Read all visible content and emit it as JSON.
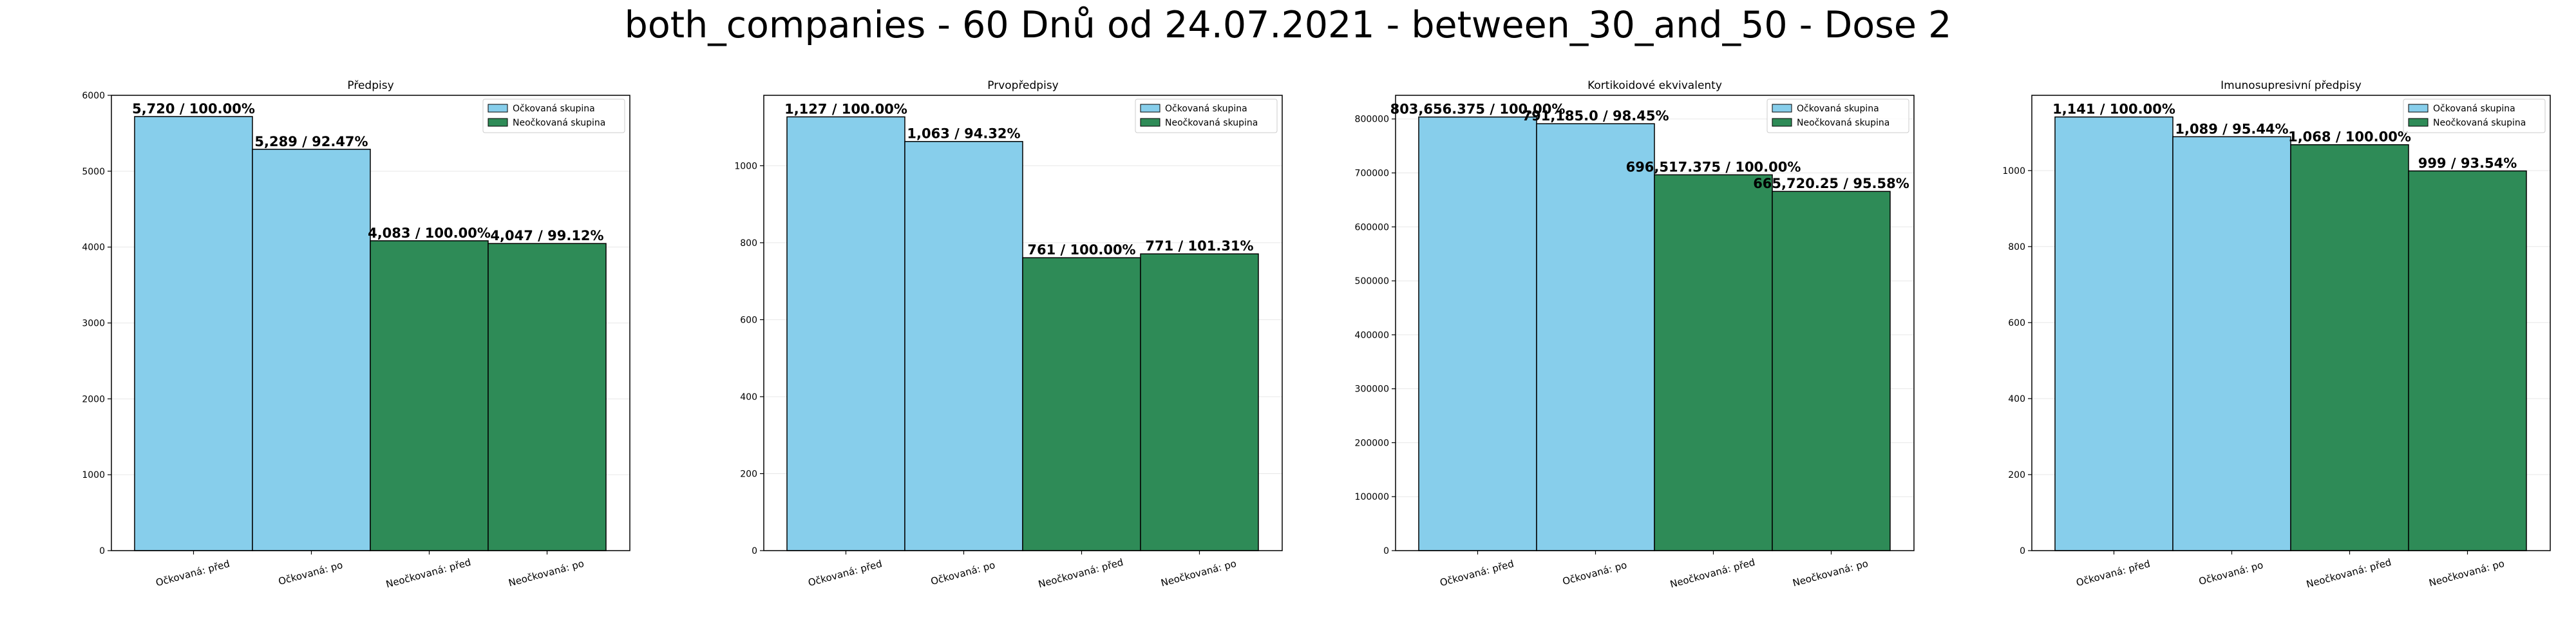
{
  "figure_title": "both_companies - 60 Dnů od 24.07.2021 - between_30_and_50 - Dose 2",
  "colors": {
    "vaccinated": "#87CEEB",
    "unvaccinated": "#2E8B57",
    "edge": "#000000"
  },
  "chart_data": [
    {
      "type": "bar",
      "title": "Předpisy",
      "categories": [
        "Očkovaná: před",
        "Očkovaná: po",
        "Neočkovaná: před",
        "Neočkovaná: po"
      ],
      "values": [
        5720,
        5289,
        4083,
        4047
      ],
      "data_labels": [
        "5,720 / 100.00%",
        "5,289 / 92.47%",
        "4,083 / 100.00%",
        "4,047 / 99.12%"
      ],
      "bar_series": [
        "Očkovaná skupina",
        "Očkovaná skupina",
        "Neočkovaná skupina",
        "Neočkovaná skupina"
      ],
      "ylim": [
        0,
        6000
      ],
      "yticks": [
        0,
        1000,
        2000,
        3000,
        4000,
        5000,
        6000
      ],
      "legend": [
        "Očkovaná skupina",
        "Neočkovaná skupina"
      ],
      "legend_position": "top-right",
      "grid": true
    },
    {
      "type": "bar",
      "title": "Prvopředpisy",
      "categories": [
        "Očkovaná: před",
        "Očkovaná: po",
        "Neočkovaná: před",
        "Neočkovaná: po"
      ],
      "values": [
        1127,
        1063,
        761,
        771
      ],
      "data_labels": [
        "1,127 / 100.00%",
        "1,063 / 94.32%",
        "761 / 100.00%",
        "771 / 101.31%"
      ],
      "bar_series": [
        "Očkovaná skupina",
        "Očkovaná skupina",
        "Neočkovaná skupina",
        "Neočkovaná skupina"
      ],
      "ylim": [
        0,
        1183
      ],
      "yticks": [
        0,
        200,
        400,
        600,
        800,
        1000
      ],
      "legend": [
        "Očkovaná skupina",
        "Neočkovaná skupina"
      ],
      "legend_position": "top-right",
      "grid": true
    },
    {
      "type": "bar",
      "title": "Kortikoidové ekvivalenty",
      "categories": [
        "Očkovaná: před",
        "Očkovaná: po",
        "Neočkovaná: před",
        "Neočkovaná: po"
      ],
      "values": [
        803656.375,
        791185.0,
        696517.375,
        665720.25
      ],
      "data_labels": [
        "803,656.375 / 100.00%",
        "791,185.0 / 98.45%",
        "696,517.375 / 100.00%",
        "665,720.25 / 95.58%"
      ],
      "bar_series": [
        "Očkovaná skupina",
        "Očkovaná skupina",
        "Neočkovaná skupina",
        "Neočkovaná skupina"
      ],
      "ylim": [
        0,
        843839
      ],
      "yticks": [
        0,
        100000,
        200000,
        300000,
        400000,
        500000,
        600000,
        700000,
        800000
      ],
      "legend": [
        "Očkovaná skupina",
        "Neočkovaná skupina"
      ],
      "legend_position": "top-right",
      "grid": true
    },
    {
      "type": "bar",
      "title": "Imunosupresivní předpisy",
      "categories": [
        "Očkovaná: před",
        "Očkovaná: po",
        "Neočkovaná: před",
        "Neočkovaná: po"
      ],
      "values": [
        1141,
        1089,
        1068,
        999
      ],
      "data_labels": [
        "1,141 / 100.00%",
        "1,089 / 95.44%",
        "1,068 / 100.00%",
        "999 / 93.54%"
      ],
      "bar_series": [
        "Očkovaná skupina",
        "Očkovaná skupina",
        "Neočkovaná skupina",
        "Neočkovaná skupina"
      ],
      "ylim": [
        0,
        1198
      ],
      "yticks": [
        0,
        200,
        400,
        600,
        800,
        1000
      ],
      "legend": [
        "Očkovaná skupina",
        "Neočkovaná skupina"
      ],
      "legend_position": "top-right",
      "grid": true
    }
  ]
}
